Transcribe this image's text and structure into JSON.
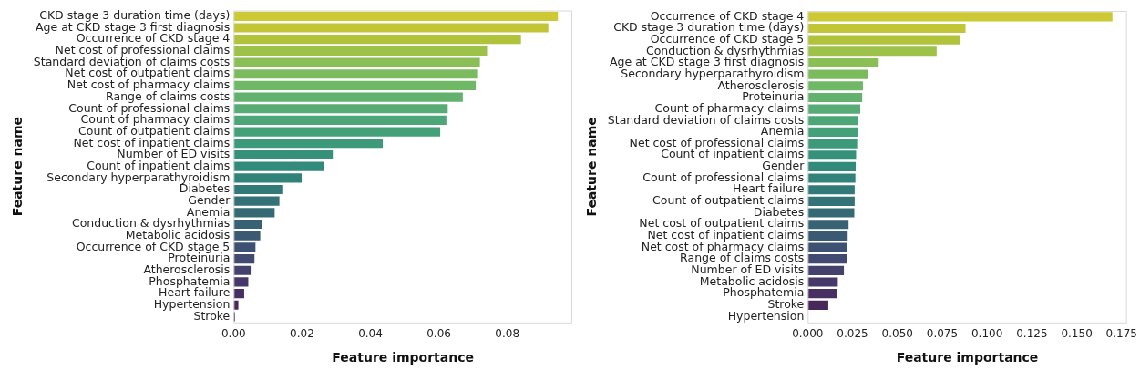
{
  "chart_data": [
    {
      "type": "bar",
      "orientation": "horizontal",
      "xlabel": "Feature importance",
      "ylabel": "Feature name",
      "grid": false,
      "legend": false,
      "categories": [
        "CKD stage 3 duration time (days)",
        "Age at CKD stage 3 first diagnosis",
        "Occurrence of CKD stage 4",
        "Net cost of professional claims",
        "Standard deviation of claims costs",
        "Net cost of outpatient claims",
        "Net cost of pharmacy claims",
        "Range of claims costs",
        "Count of professional claims",
        "Count of pharmacy claims",
        "Count of outpatient claims",
        "Net cost of inpatient claims",
        "Number of ED visits",
        "Count of inpatient claims",
        "Secondary hyperparathyroidism",
        "Diabetes",
        "Gender",
        "Anemia",
        "Conduction & dysrhythmias",
        "Metabolic acidosis",
        "Occurrence of CKD stage 5",
        "Proteinuria",
        "Atherosclerosis",
        "Phosphatemia",
        "Heart failure",
        "Hypertension",
        "Stroke"
      ],
      "values": [
        0.0948,
        0.092,
        0.084,
        0.0741,
        0.072,
        0.0712,
        0.0708,
        0.067,
        0.0626,
        0.0622,
        0.0604,
        0.0436,
        0.029,
        0.0265,
        0.0199,
        0.0145,
        0.0134,
        0.012,
        0.0083,
        0.0078,
        0.0064,
        0.0061,
        0.005,
        0.0043,
        0.0031,
        0.0014,
        0.0004
      ],
      "colors": [
        "#cdc934",
        "#c2c536",
        "#b0c33b",
        "#9dc24a",
        "#8abf55",
        "#7bbb5e",
        "#6fb866",
        "#62b26e",
        "#56ac74",
        "#4ca677",
        "#43a079",
        "#3c997a",
        "#36917a",
        "#328a7a",
        "#318279",
        "#327a78",
        "#337276",
        "#356a75",
        "#376273",
        "#3a5a73",
        "#3d5272",
        "#414a70",
        "#44416d",
        "#463868",
        "#472f62",
        "#48275b",
        "#471f53"
      ],
      "xlim": [
        0,
        0.099
      ],
      "xticks": [
        {
          "value": 0,
          "label": "0.00"
        },
        0.02,
        0.04,
        0.06,
        0.08
      ]
    },
    {
      "type": "bar",
      "orientation": "horizontal",
      "xlabel": "Feature importance",
      "ylabel": "Feature name",
      "grid": false,
      "legend": false,
      "categories": [
        "Occurrence of CKD stage 4",
        "CKD stage 3 duration time (days)",
        "Occurrence of CKD stage 5",
        "Conduction & dysrhythmias",
        "Age at CKD stage 3 first diagnosis",
        "Secondary hyperparathyroidism",
        "Atherosclerosis",
        "Proteinuria",
        "Count of pharmacy claims",
        "Standard deviation of claims costs",
        "Anemia",
        "Net cost of professional claims",
        "Count of inpatient claims",
        "Gender",
        "Count of professional claims",
        "Heart failure",
        "Count of outpatient claims",
        "Diabetes",
        "Net cost of outpatient claims",
        "Net cost of inpatient claims",
        "Net cost of pharmacy claims",
        "Range of claims costs",
        "Number of ED visits",
        "Metabolic acidosis",
        "Phosphatemia",
        "Stroke",
        "Hypertension"
      ],
      "values": [
        0.1699,
        0.088,
        0.0851,
        0.0719,
        0.0396,
        0.0338,
        0.0308,
        0.0304,
        0.0293,
        0.0283,
        0.0279,
        0.0276,
        0.027,
        0.0268,
        0.0266,
        0.0262,
        0.0262,
        0.026,
        0.0228,
        0.0223,
        0.0221,
        0.0219,
        0.0202,
        0.0168,
        0.0162,
        0.0115,
        0
      ],
      "colors": [
        "#cdc934",
        "#c2c536",
        "#b0c33b",
        "#9dc24a",
        "#8abf55",
        "#7bbb5e",
        "#6fb866",
        "#62b26e",
        "#56ac74",
        "#4ca677",
        "#43a079",
        "#3c997a",
        "#36917a",
        "#328a7a",
        "#318279",
        "#327a78",
        "#337276",
        "#356a75",
        "#376273",
        "#3a5a73",
        "#3d5272",
        "#414a70",
        "#44416d",
        "#463868",
        "#472f62",
        "#48275b",
        "#471f53"
      ],
      "xlim": [
        0,
        0.178
      ],
      "xticks": [
        {
          "value": 0,
          "label": "0.000"
        },
        {
          "value": 0.025,
          "label": "0.025"
        },
        {
          "value": 0.05,
          "label": "0.050"
        },
        {
          "value": 0.075,
          "label": "0.075"
        },
        {
          "value": 0.1,
          "label": "0.100"
        },
        {
          "value": 0.125,
          "label": "0.125"
        },
        {
          "value": 0.15,
          "label": "0.150"
        },
        {
          "value": 0.175,
          "label": "0.175"
        }
      ]
    }
  ]
}
